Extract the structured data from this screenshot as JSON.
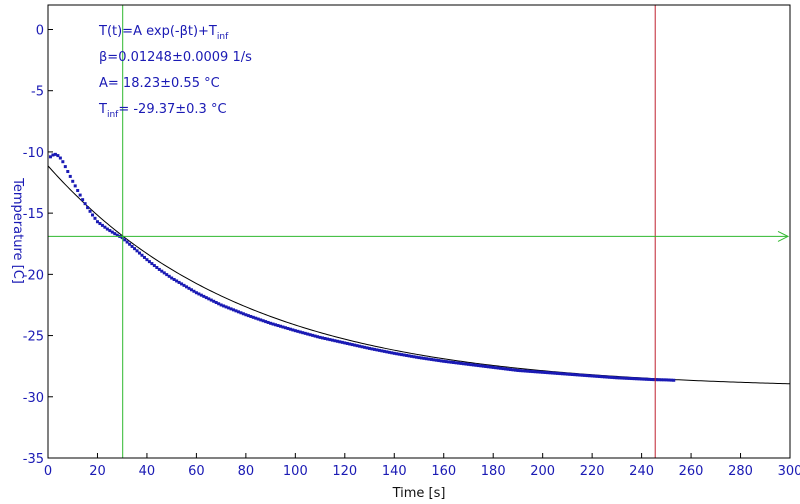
{
  "chart_data": {
    "type": "scatter",
    "xlabel": "Time [s]",
    "ylabel": "Temperature [C]",
    "xlim": [
      0,
      300
    ],
    "ylim": [
      -35,
      2
    ],
    "x_ticks": [
      0,
      20,
      40,
      60,
      80,
      100,
      120,
      140,
      160,
      180,
      200,
      220,
      240,
      260,
      280,
      300
    ],
    "y_ticks": [
      0,
      -5,
      -10,
      -15,
      -20,
      -25,
      -30,
      -35
    ],
    "grid": false,
    "series": [
      {
        "kind": "points",
        "color": "#1a1ab4",
        "x": [
          1,
          2,
          3,
          4,
          5,
          6,
          7,
          8,
          9,
          10,
          12,
          14,
          16,
          18,
          20,
          22,
          24,
          26,
          28,
          30,
          35,
          40,
          45,
          50,
          55,
          60,
          70,
          80,
          90,
          100,
          110,
          120,
          130,
          140,
          150,
          160,
          170,
          180,
          190,
          200,
          210,
          220,
          230,
          240,
          245,
          250,
          253
        ],
        "y": [
          -10.4,
          -10.25,
          -10.2,
          -10.3,
          -10.5,
          -10.8,
          -11.2,
          -11.6,
          -12.0,
          -12.4,
          -13.15,
          -13.9,
          -14.55,
          -15.15,
          -15.7,
          -16.0,
          -16.3,
          -16.55,
          -16.8,
          -17.0,
          -17.9,
          -18.8,
          -19.6,
          -20.3,
          -20.9,
          -21.5,
          -22.5,
          -23.3,
          -24.0,
          -24.6,
          -25.15,
          -25.6,
          -26.05,
          -26.45,
          -26.8,
          -27.1,
          -27.35,
          -27.6,
          -27.85,
          -28.0,
          -28.15,
          -28.3,
          -28.45,
          -28.55,
          -28.6,
          -28.62,
          -28.65
        ]
      },
      {
        "kind": "fit",
        "color": "#000000",
        "model": "T(t)=A exp(-βt)+T_inf",
        "beta": 0.01248,
        "A": 18.23,
        "T_inf": -29.37,
        "x_range": [
          0,
          300
        ]
      }
    ],
    "cursors": {
      "vertical_green_x": 30.2,
      "vertical_red_x": 245.5,
      "horizontal_green_y": -16.9
    },
    "annotations": [
      {
        "main": "T(t)=A exp(-βt)+T",
        "sub": "inf",
        "after": ""
      },
      {
        "main": "β=0.01248±0.0009 1/s",
        "sub": "",
        "after": ""
      },
      {
        "main": "A= 18.23±0.55 °C",
        "sub": "",
        "after": ""
      },
      {
        "main": "T",
        "sub": "inf",
        "after": "= -29.37±0.3 °C"
      }
    ],
    "colors": {
      "axis_text": "#1a1ab4",
      "points": "#1a1ab4",
      "fit_line": "#000000",
      "cursor_green": "#2fb82f",
      "cursor_red": "#c0202e",
      "frame": "#000000"
    }
  }
}
